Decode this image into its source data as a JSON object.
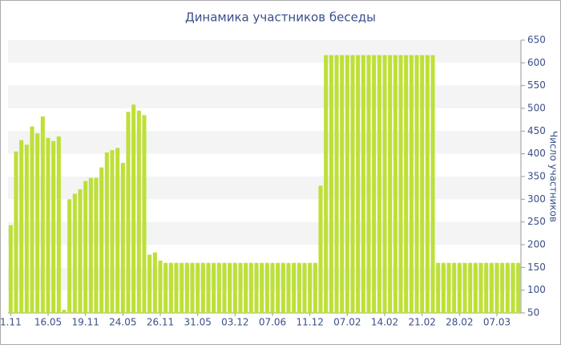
{
  "chart_data": {
    "type": "bar",
    "title": "Динамика участников беседы",
    "y_axis_label": "Число участников",
    "categories": [
      "1.11",
      null,
      null,
      null,
      null,
      null,
      null,
      "16.05",
      null,
      null,
      null,
      null,
      null,
      null,
      "19.11",
      null,
      null,
      null,
      null,
      null,
      null,
      "24.05",
      null,
      null,
      null,
      null,
      null,
      null,
      "26.11",
      null,
      null,
      null,
      null,
      null,
      null,
      "31.05",
      null,
      null,
      null,
      null,
      null,
      null,
      "03.12",
      null,
      null,
      null,
      null,
      null,
      null,
      "07.06",
      null,
      null,
      null,
      null,
      null,
      null,
      "11.12",
      null,
      null,
      null,
      null,
      null,
      null,
      "07.02",
      null,
      null,
      null,
      null,
      null,
      null,
      "14.02",
      null,
      null,
      null,
      null,
      null,
      null,
      "21.02",
      null,
      null,
      null,
      null,
      null,
      null,
      "28.02",
      null,
      null,
      null,
      null,
      null,
      null,
      "07.03",
      null,
      null,
      null,
      null
    ],
    "values": [
      243,
      405,
      430,
      420,
      460,
      445,
      482,
      435,
      428,
      438,
      57,
      300,
      312,
      322,
      340,
      347,
      347,
      370,
      403,
      408,
      413,
      380,
      492,
      508,
      495,
      485,
      178,
      183,
      165,
      160,
      160,
      160,
      160,
      160,
      160,
      160,
      160,
      160,
      160,
      160,
      160,
      160,
      160,
      160,
      160,
      160,
      160,
      160,
      160,
      160,
      160,
      160,
      160,
      160,
      160,
      160,
      160,
      160,
      330,
      617,
      617,
      617,
      617,
      617,
      617,
      617,
      617,
      617,
      617,
      617,
      617,
      617,
      617,
      617,
      617,
      617,
      617,
      617,
      617,
      617,
      160,
      160,
      160,
      160,
      160,
      160,
      160,
      160,
      160,
      160,
      160,
      160,
      160,
      160,
      160,
      160
    ],
    "color": "#bde038",
    "ylim": [
      50,
      650
    ],
    "yticks": [
      50,
      100,
      150,
      200,
      250,
      300,
      350,
      400,
      450,
      500,
      550,
      600,
      650
    ],
    "grid": true
  }
}
